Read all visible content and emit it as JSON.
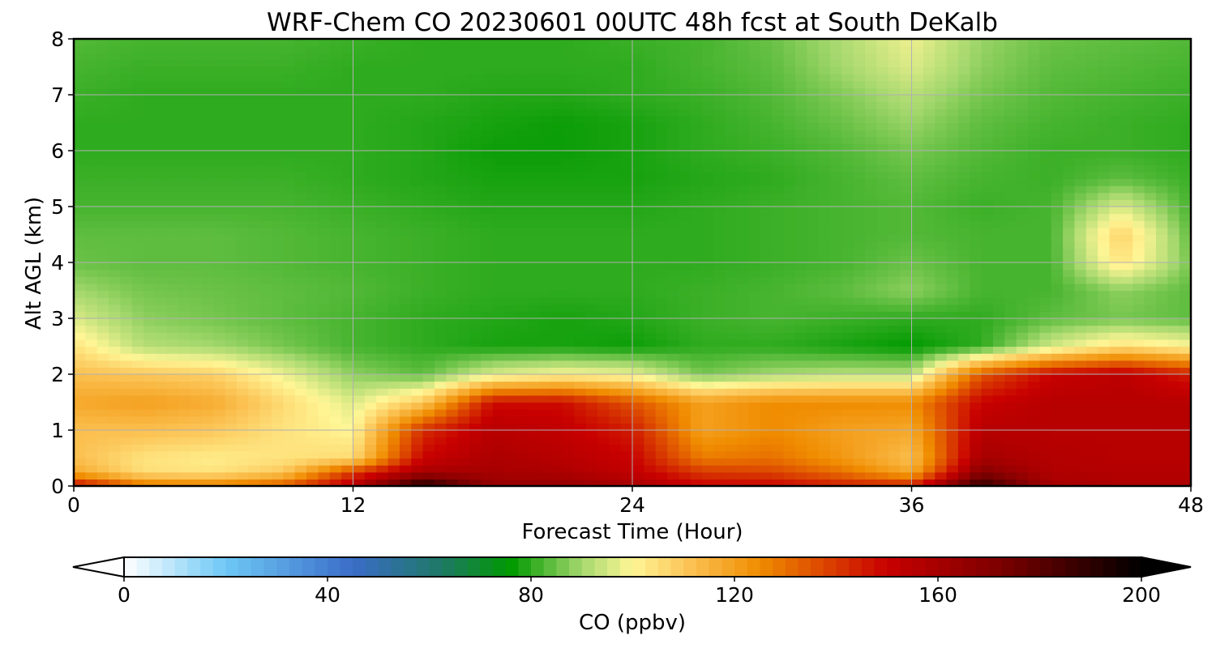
{
  "chart_data": {
    "type": "heatmap",
    "title": "WRF-Chem CO  20230601 00UTC 48h fcst at South DeKalb",
    "xlabel": "Forecast Time (Hour)",
    "ylabel": "Alt AGL (km)",
    "xlim": [
      0,
      48
    ],
    "ylim": [
      0,
      8
    ],
    "xticks": [
      0,
      12,
      24,
      36,
      48
    ],
    "yticks": [
      0,
      1,
      2,
      3,
      4,
      5,
      6,
      7,
      8
    ],
    "grid": true,
    "x": [
      0,
      3,
      6,
      9,
      12,
      15,
      18,
      21,
      24,
      27,
      30,
      33,
      36,
      39,
      42,
      45,
      48
    ],
    "y": [
      0,
      0.25,
      0.5,
      1,
      1.5,
      2,
      2.5,
      3,
      3.5,
      4,
      4.5,
      5,
      5.5,
      6,
      6.5,
      7,
      7.5,
      8
    ],
    "z": [
      [
        150,
        130,
        128,
        135,
        155,
        195,
        165,
        165,
        160,
        150,
        150,
        145,
        145,
        190,
        160,
        158,
        158
      ],
      [
        118,
        105,
        104,
        110,
        140,
        160,
        160,
        158,
        152,
        140,
        138,
        130,
        118,
        170,
        157,
        156,
        156
      ],
      [
        112,
        104,
        102,
        104,
        106,
        150,
        158,
        155,
        150,
        128,
        130,
        122,
        112,
        160,
        156,
        155,
        155
      ],
      [
        112,
        112,
        110,
        104,
        100,
        142,
        155,
        152,
        145,
        120,
        125,
        120,
        118,
        155,
        155,
        155,
        155
      ],
      [
        118,
        120,
        117,
        106,
        96,
        110,
        148,
        148,
        135,
        120,
        125,
        125,
        125,
        150,
        155,
        155,
        155
      ],
      [
        112,
        110,
        108,
        98,
        88,
        84,
        96,
        100,
        98,
        86,
        90,
        92,
        92,
        135,
        150,
        154,
        145
      ],
      [
        104,
        92,
        90,
        86,
        82,
        80,
        78,
        78,
        77,
        80,
        80,
        78,
        76,
        80,
        95,
        105,
        100
      ],
      [
        96,
        88,
        86,
        84,
        82,
        80,
        79,
        78,
        79,
        81,
        82,
        81,
        80,
        80,
        84,
        86,
        84
      ],
      [
        90,
        86,
        85,
        84,
        83,
        81,
        80,
        80,
        80,
        81,
        82,
        84,
        88,
        82,
        82,
        88,
        84
      ],
      [
        85,
        84,
        84,
        83,
        82,
        81,
        80,
        80,
        80,
        80,
        81,
        82,
        85,
        82,
        82,
        104,
        86
      ],
      [
        84,
        84,
        84,
        83,
        82,
        81,
        80,
        80,
        80,
        80,
        81,
        82,
        83,
        82,
        82,
        108,
        84
      ],
      [
        82,
        82,
        82,
        82,
        81,
        80,
        79,
        79,
        79,
        80,
        81,
        82,
        83,
        81,
        82,
        96,
        82
      ],
      [
        81,
        81,
        81,
        81,
        80,
        79,
        78,
        78,
        78,
        79,
        80,
        82,
        84,
        82,
        81,
        84,
        81
      ],
      [
        80,
        80,
        80,
        80,
        80,
        79,
        77,
        77,
        78,
        80,
        81,
        83,
        86,
        83,
        81,
        81,
        80
      ],
      [
        80,
        80,
        80,
        80,
        80,
        79,
        78,
        77,
        78,
        80,
        82,
        85,
        89,
        84,
        82,
        81,
        80
      ],
      [
        81,
        80,
        80,
        80,
        80,
        80,
        79,
        79,
        80,
        81,
        83,
        87,
        92,
        86,
        83,
        82,
        81
      ],
      [
        82,
        81,
        81,
        81,
        80,
        80,
        80,
        80,
        80,
        82,
        84,
        90,
        96,
        88,
        84,
        83,
        82
      ],
      [
        83,
        82,
        82,
        82,
        81,
        80,
        80,
        80,
        81,
        82,
        85,
        91,
        98,
        89,
        85,
        84,
        83
      ]
    ],
    "colorbar": {
      "label": "CO  (ppbv)",
      "min": 0,
      "max": 200,
      "ticks": [
        0,
        40,
        80,
        120,
        160,
        200
      ],
      "extend": "both",
      "colors": [
        {
          "v": 0,
          "c": "#ffffff"
        },
        {
          "v": 20,
          "c": "#6ec8f5"
        },
        {
          "v": 45,
          "c": "#3a6cc8"
        },
        {
          "v": 62,
          "c": "#1f7868"
        },
        {
          "v": 76,
          "c": "#009900"
        },
        {
          "v": 90,
          "c": "#a5d86e"
        },
        {
          "v": 100,
          "c": "#fff696"
        },
        {
          "v": 110,
          "c": "#fcc75a"
        },
        {
          "v": 125,
          "c": "#f08c00"
        },
        {
          "v": 150,
          "c": "#c80000"
        },
        {
          "v": 172,
          "c": "#7d0000"
        },
        {
          "v": 200,
          "c": "#000000"
        }
      ]
    }
  }
}
